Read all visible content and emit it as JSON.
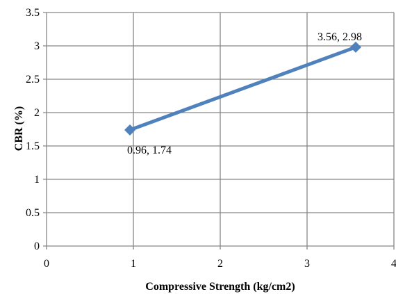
{
  "chart_data": {
    "type": "line",
    "xlabel": "Compressive Strength (kg/cm2)",
    "ylabel": "CBR (%)",
    "xlim": [
      0,
      4
    ],
    "ylim": [
      0,
      3.5
    ],
    "x_ticks": [
      "0",
      "1",
      "2",
      "3",
      "4"
    ],
    "y_ticks": [
      "0",
      "0.5",
      "1",
      "1.5",
      "2",
      "2.5",
      "3",
      "3.5"
    ],
    "grid": true,
    "legend": "none",
    "series": [
      {
        "color": "#4F81BD",
        "marker": "diamond",
        "points": [
          {
            "x": 0.96,
            "y": 1.74,
            "label": "0.96, 1.74"
          },
          {
            "x": 3.56,
            "y": 2.98,
            "label": "3.56, 2.98"
          }
        ]
      }
    ]
  }
}
